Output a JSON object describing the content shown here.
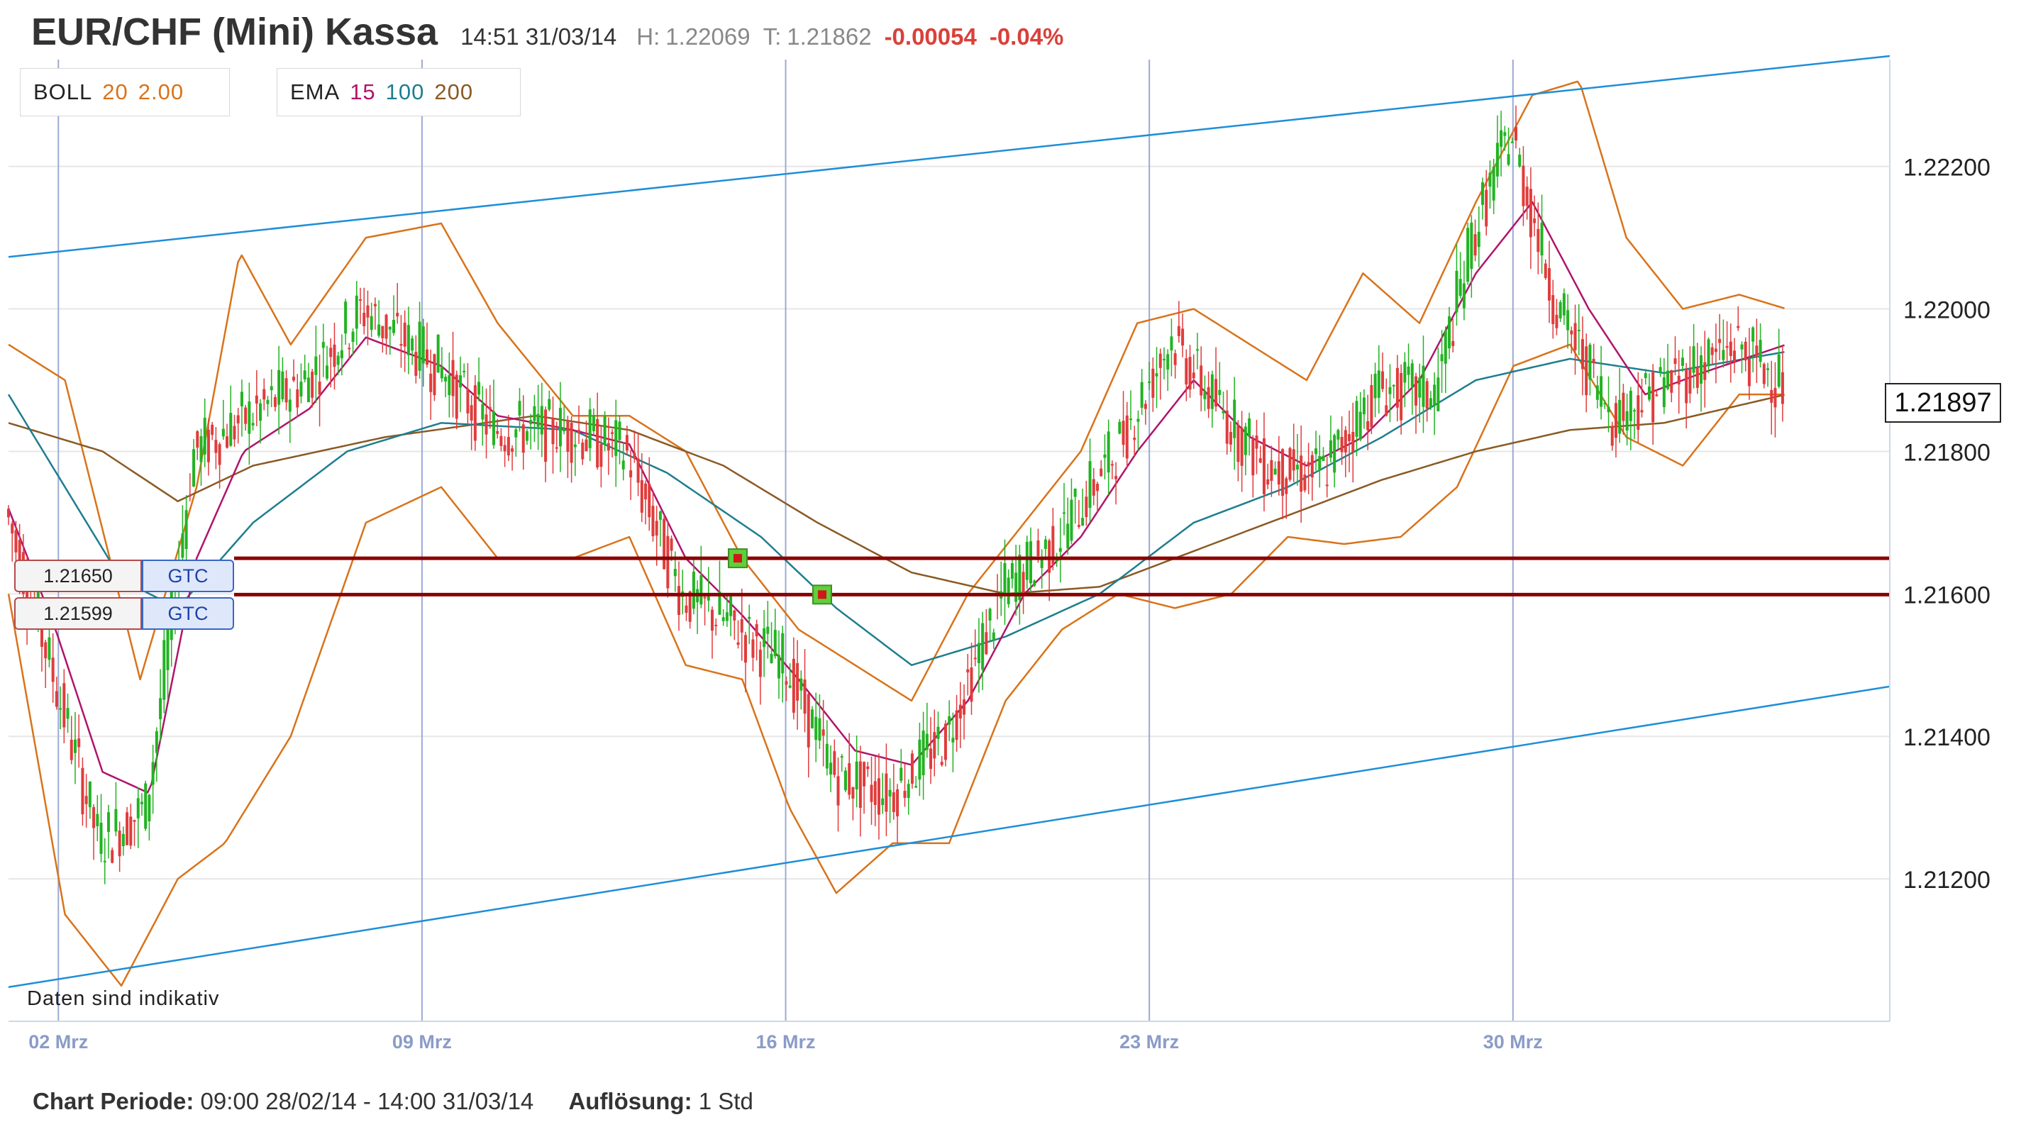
{
  "header": {
    "title": "EUR/CHF (Mini) Kassa",
    "time": "14:51 31/03/14",
    "high_label": "H:",
    "high": "1.22069",
    "last_label": "T:",
    "last": "1.21862",
    "change": "-0.00054",
    "change_pct": "-0.04%"
  },
  "legend": {
    "boll": {
      "name": "BOLL",
      "period": "20",
      "dev": "2.00"
    },
    "ema": {
      "name": "EMA",
      "p1": "15",
      "p2": "100",
      "p3": "200"
    }
  },
  "orders": [
    {
      "price": "1.21650",
      "type": "GTC"
    },
    {
      "price": "1.21599",
      "type": "GTC"
    }
  ],
  "last_price_tag": "1.21897",
  "note": "Daten sind indikativ",
  "footer": {
    "period_label": "Chart Periode:",
    "period_value": "09:00 28/02/14 - 14:00 31/03/14",
    "resolution_label": "Auflösung:",
    "resolution_value": "1 Std"
  },
  "colors": {
    "up": "#22b322",
    "down": "#e03c3c",
    "boll": "#d9731a",
    "ema15": "#b0136c",
    "ema100": "#1e7e8e",
    "ema200": "#8a5a24",
    "channel": "#1e8ed8",
    "order_line": "#8b0000",
    "grid": "#e6e6e6",
    "vgrid": "#9aaad4",
    "axis_label": "#8a9cc8"
  },
  "chart_data": {
    "type": "candlestick",
    "y_ticks": [
      "1.22200",
      "1.22000",
      "1.21800",
      "1.21600",
      "1.21400",
      "1.21200"
    ],
    "x_ticks": [
      "02 Mrz",
      "09 Mrz",
      "16 Mrz",
      "23 Mrz",
      "30 Mrz"
    ],
    "x_range": [
      "28/02/14 09:00",
      "31/03/14 14:00"
    ],
    "y_range": [
      1.21,
      1.2235
    ],
    "resolution": "1 Std",
    "indicators": [
      "BOLL 20 2.00",
      "EMA 15",
      "EMA 100",
      "EMA 200"
    ],
    "order_levels": [
      1.2165,
      1.21599
    ],
    "last_price": 1.21897,
    "trend_channel": {
      "upper": [
        [
          0,
          1.22073
        ],
        [
          1,
          1.22355
        ]
      ],
      "lower": [
        [
          0,
          1.21048
        ],
        [
          1,
          1.2147
        ]
      ]
    },
    "close_path": [
      [
        0.0,
        1.2172
      ],
      [
        0.022,
        1.2152
      ],
      [
        0.05,
        1.2125
      ],
      [
        0.075,
        1.213
      ],
      [
        0.1,
        1.218
      ],
      [
        0.13,
        1.2185
      ],
      [
        0.16,
        1.219
      ],
      [
        0.19,
        1.22
      ],
      [
        0.23,
        1.2192
      ],
      [
        0.26,
        1.2183
      ],
      [
        0.3,
        1.2183
      ],
      [
        0.33,
        1.218
      ],
      [
        0.36,
        1.216
      ],
      [
        0.39,
        1.2155
      ],
      [
        0.415,
        1.215
      ],
      [
        0.44,
        1.2135
      ],
      [
        0.47,
        1.2132
      ],
      [
        0.5,
        1.214
      ],
      [
        0.53,
        1.216
      ],
      [
        0.56,
        1.2168
      ],
      [
        0.59,
        1.218
      ],
      [
        0.62,
        1.2196
      ],
      [
        0.64,
        1.2188
      ],
      [
        0.67,
        1.2178
      ],
      [
        0.7,
        1.2177
      ],
      [
        0.73,
        1.2189
      ],
      [
        0.76,
        1.2188
      ],
      [
        0.78,
        1.221
      ],
      [
        0.8,
        1.2225
      ],
      [
        0.825,
        1.22
      ],
      [
        0.855,
        1.2185
      ],
      [
        0.885,
        1.219
      ],
      [
        0.92,
        1.2195
      ],
      [
        0.945,
        1.21897
      ]
    ],
    "boll_upper_path": [
      [
        0.0,
        1.2195
      ],
      [
        0.03,
        1.219
      ],
      [
        0.07,
        1.2148
      ],
      [
        0.1,
        1.2175
      ],
      [
        0.123,
        1.2208
      ],
      [
        0.15,
        1.2195
      ],
      [
        0.19,
        1.221
      ],
      [
        0.23,
        1.2212
      ],
      [
        0.26,
        1.2198
      ],
      [
        0.3,
        1.2185
      ],
      [
        0.33,
        1.2185
      ],
      [
        0.36,
        1.218
      ],
      [
        0.39,
        1.2165
      ],
      [
        0.42,
        1.2155
      ],
      [
        0.45,
        1.215
      ],
      [
        0.48,
        1.2145
      ],
      [
        0.51,
        1.216
      ],
      [
        0.54,
        1.217
      ],
      [
        0.57,
        1.218
      ],
      [
        0.6,
        1.2198
      ],
      [
        0.63,
        1.22
      ],
      [
        0.66,
        1.2195
      ],
      [
        0.69,
        1.219
      ],
      [
        0.72,
        1.2205
      ],
      [
        0.75,
        1.2198
      ],
      [
        0.78,
        1.2215
      ],
      [
        0.81,
        1.223
      ],
      [
        0.835,
        1.2232
      ],
      [
        0.86,
        1.221
      ],
      [
        0.89,
        1.22
      ],
      [
        0.92,
        1.2202
      ],
      [
        0.945,
        1.22
      ]
    ],
    "boll_lower_path": [
      [
        0.0,
        1.216
      ],
      [
        0.03,
        1.2115
      ],
      [
        0.06,
        1.2105
      ],
      [
        0.09,
        1.212
      ],
      [
        0.115,
        1.2125
      ],
      [
        0.15,
        1.214
      ],
      [
        0.19,
        1.217
      ],
      [
        0.23,
        1.2175
      ],
      [
        0.26,
        1.2165
      ],
      [
        0.3,
        1.2165
      ],
      [
        0.33,
        1.2168
      ],
      [
        0.36,
        1.215
      ],
      [
        0.39,
        1.2148
      ],
      [
        0.415,
        1.213
      ],
      [
        0.44,
        1.2118
      ],
      [
        0.47,
        1.2125
      ],
      [
        0.5,
        1.2125
      ],
      [
        0.53,
        1.2145
      ],
      [
        0.56,
        1.2155
      ],
      [
        0.59,
        1.216
      ],
      [
        0.62,
        1.2158
      ],
      [
        0.65,
        1.216
      ],
      [
        0.68,
        1.2168
      ],
      [
        0.71,
        1.2167
      ],
      [
        0.74,
        1.2168
      ],
      [
        0.77,
        1.2175
      ],
      [
        0.8,
        1.2192
      ],
      [
        0.83,
        1.2195
      ],
      [
        0.86,
        1.2182
      ],
      [
        0.89,
        1.2178
      ],
      [
        0.92,
        1.2188
      ],
      [
        0.945,
        1.2188
      ]
    ],
    "ema15_path": [
      [
        0.0,
        1.2172
      ],
      [
        0.025,
        1.2155
      ],
      [
        0.05,
        1.2135
      ],
      [
        0.075,
        1.2132
      ],
      [
        0.1,
        1.2165
      ],
      [
        0.125,
        1.218
      ],
      [
        0.16,
        1.2186
      ],
      [
        0.19,
        1.2196
      ],
      [
        0.23,
        1.2192
      ],
      [
        0.26,
        1.2185
      ],
      [
        0.3,
        1.2183
      ],
      [
        0.33,
        1.2181
      ],
      [
        0.36,
        1.2165
      ],
      [
        0.39,
        1.2157
      ],
      [
        0.42,
        1.2148
      ],
      [
        0.45,
        1.2138
      ],
      [
        0.48,
        1.2136
      ],
      [
        0.51,
        1.2145
      ],
      [
        0.54,
        1.216
      ],
      [
        0.57,
        1.2168
      ],
      [
        0.6,
        1.218
      ],
      [
        0.63,
        1.219
      ],
      [
        0.66,
        1.2182
      ],
      [
        0.69,
        1.2178
      ],
      [
        0.72,
        1.2182
      ],
      [
        0.75,
        1.219
      ],
      [
        0.78,
        1.2205
      ],
      [
        0.81,
        1.2215
      ],
      [
        0.84,
        1.22
      ],
      [
        0.87,
        1.2188
      ],
      [
        0.9,
        1.2191
      ],
      [
        0.945,
        1.2195
      ]
    ],
    "ema100_path": [
      [
        0.0,
        1.2188
      ],
      [
        0.06,
        1.2162
      ],
      [
        0.09,
        1.2158
      ],
      [
        0.13,
        1.217
      ],
      [
        0.18,
        1.218
      ],
      [
        0.23,
        1.2184
      ],
      [
        0.3,
        1.2183
      ],
      [
        0.35,
        1.2177
      ],
      [
        0.4,
        1.2168
      ],
      [
        0.44,
        1.2158
      ],
      [
        0.48,
        1.215
      ],
      [
        0.53,
        1.2154
      ],
      [
        0.58,
        1.216
      ],
      [
        0.63,
        1.217
      ],
      [
        0.68,
        1.2175
      ],
      [
        0.73,
        1.2182
      ],
      [
        0.78,
        1.219
      ],
      [
        0.83,
        1.2193
      ],
      [
        0.88,
        1.2191
      ],
      [
        0.945,
        1.2194
      ]
    ],
    "ema200_path": [
      [
        0.0,
        1.2184
      ],
      [
        0.05,
        1.218
      ],
      [
        0.09,
        1.2173
      ],
      [
        0.13,
        1.2178
      ],
      [
        0.2,
        1.2182
      ],
      [
        0.28,
        1.2185
      ],
      [
        0.33,
        1.2183
      ],
      [
        0.38,
        1.2178
      ],
      [
        0.43,
        1.217
      ],
      [
        0.48,
        1.2163
      ],
      [
        0.53,
        1.216
      ],
      [
        0.58,
        1.2161
      ],
      [
        0.63,
        1.2166
      ],
      [
        0.68,
        1.2171
      ],
      [
        0.73,
        1.2176
      ],
      [
        0.78,
        1.218
      ],
      [
        0.83,
        1.2183
      ],
      [
        0.88,
        1.2184
      ],
      [
        0.945,
        1.2188
      ]
    ]
  }
}
